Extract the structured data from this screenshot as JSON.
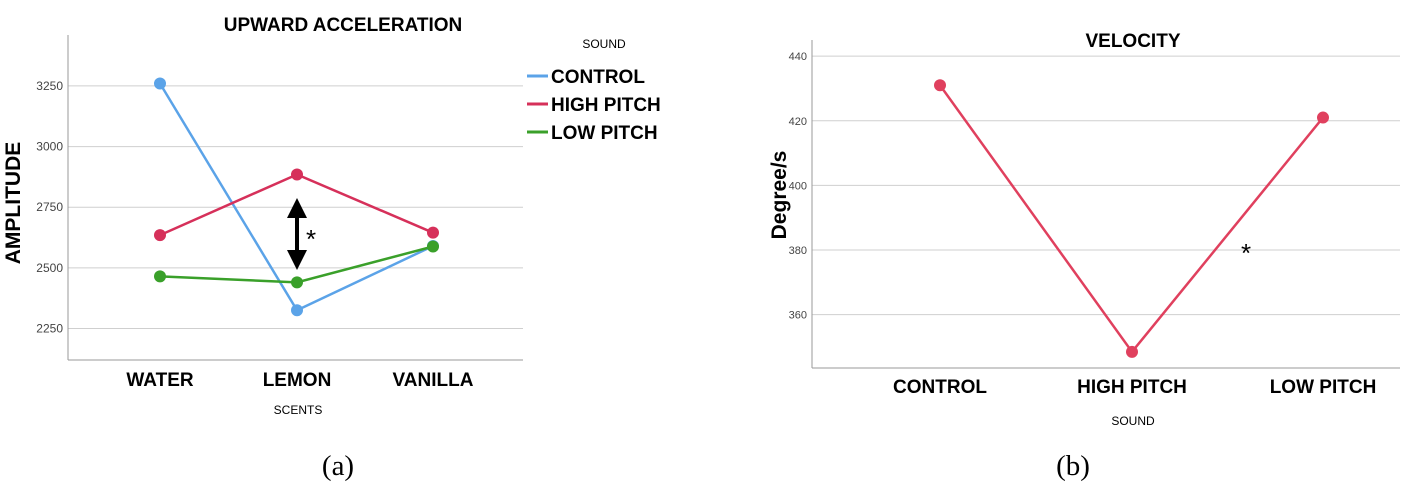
{
  "chart_data": [
    {
      "type": "line",
      "title": "UPWARD ACCELERATION",
      "xlabel": "SCENTS",
      "ylabel": "AMPLITUDE",
      "categories": [
        "WATER",
        "LEMON",
        "VANILLA"
      ],
      "yticks": [
        "2250",
        "2500",
        "2750",
        "3000",
        "3250"
      ],
      "ylim": [
        2120,
        3460
      ],
      "grid": true,
      "legend_title": "SOUND",
      "legend_position": "top-right",
      "series": [
        {
          "name": "CONTROL",
          "color": "#5ba3e8",
          "values": [
            3260,
            2325,
            2590
          ]
        },
        {
          "name": "HIGH PITCH",
          "color": "#d6305a",
          "values": [
            2635,
            2885,
            2645
          ]
        },
        {
          "name": "LOW PITCH",
          "color": "#3aa02a",
          "values": [
            2465,
            2440,
            2588
          ]
        }
      ],
      "annotation": "*",
      "caption": "(a)"
    },
    {
      "type": "line",
      "title": "VELOCITY",
      "xlabel": "SOUND",
      "ylabel": "Degree/s",
      "categories": [
        "CONTROL",
        "HIGH PITCH",
        "LOW PITCH"
      ],
      "yticks": [
        "360",
        "380",
        "400",
        "420",
        "440"
      ],
      "ylim": [
        343.5,
        445
      ],
      "grid": true,
      "series": [
        {
          "color": "#e0405e",
          "values": [
            431,
            348.5,
            421
          ]
        }
      ],
      "annotation": "*",
      "caption": "(b)"
    }
  ]
}
